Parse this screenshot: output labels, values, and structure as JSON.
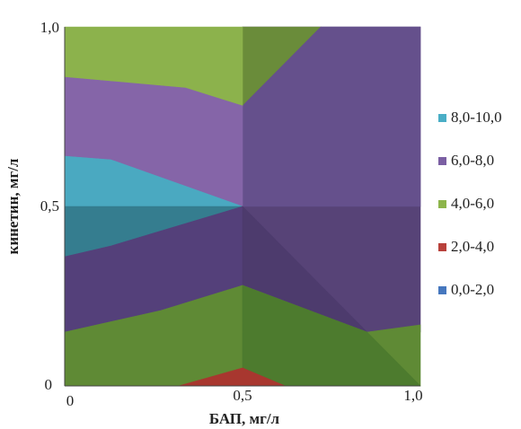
{
  "chart_data": {
    "type": "contour",
    "xlabel": "БАП, мг/л",
    "ylabel": "кинетин, мг/л",
    "x_ticks": [
      "0",
      "0,5",
      "1,0"
    ],
    "y_ticks": [
      "0",
      "0,5",
      "1,0"
    ],
    "xlim": [
      0,
      1
    ],
    "ylim": [
      0,
      1
    ],
    "legend_position": "right",
    "legend": [
      {
        "label": "8,0-10,0",
        "color": "#4aaec6"
      },
      {
        "label": "6,0-8,0",
        "color": "#7b5fa3"
      },
      {
        "label": "4,0-6,0",
        "color": "#8db54b"
      },
      {
        "label": "2,0-4,0",
        "color": "#b8413b"
      },
      {
        "label": "0,0-2,0",
        "color": "#4677be"
      }
    ],
    "grid": {
      "x": [
        0,
        0.5,
        1
      ],
      "y": [
        0,
        0.5,
        1
      ],
      "z": [
        [
          4.5,
          3.0,
          5.0
        ],
        [
          8.3,
          6.5,
          6.2
        ],
        [
          4.6,
          5.8,
          6.5
        ]
      ]
    },
    "regions": [
      {
        "band": "6,0-8,0",
        "color": "#5e4a82",
        "points": [
          [
            0.5,
            1
          ],
          [
            1,
            1
          ],
          [
            1,
            0.5
          ],
          [
            0.5,
            0.5
          ]
        ]
      },
      {
        "band": "6,0-8,0",
        "color": "#574377",
        "points": [
          [
            0.5,
            0.5
          ],
          [
            1,
            0.5
          ],
          [
            1,
            0.15
          ],
          [
            0.85,
            0.15
          ],
          [
            0.5,
            0.5
          ]
        ]
      },
      {
        "band": "4,0-6,0",
        "color": "#6a8c3a",
        "points": [
          [
            0.5,
            1
          ],
          [
            0.72,
            1
          ],
          [
            0.5,
            0.78
          ]
        ]
      },
      {
        "band": "6,0-8,0",
        "color": "#65508c",
        "points": [
          [
            0.5,
            0.78
          ],
          [
            0.72,
            1
          ],
          [
            1,
            1
          ],
          [
            1,
            0.5
          ],
          [
            0.5,
            0.5
          ]
        ]
      },
      {
        "band": "4,0-6,0",
        "color": "#8cb24c",
        "points": [
          [
            0,
            1
          ],
          [
            0.5,
            1
          ],
          [
            0.5,
            0.78
          ],
          [
            0.34,
            0.83
          ],
          [
            0,
            0.86
          ]
        ]
      },
      {
        "band": "6,0-8,0",
        "color": "#8565a8",
        "points": [
          [
            0,
            0.86
          ],
          [
            0.34,
            0.83
          ],
          [
            0.5,
            0.78
          ],
          [
            0.5,
            0.5
          ],
          [
            0.13,
            0.63
          ],
          [
            0,
            0.64
          ]
        ]
      },
      {
        "band": "8,0-10,0",
        "color": "#4aa9c1",
        "points": [
          [
            0,
            0.64
          ],
          [
            0.13,
            0.63
          ],
          [
            0.5,
            0.5
          ],
          [
            0,
            0.5
          ]
        ]
      },
      {
        "band": "8,0-10,0",
        "color": "#357d8f",
        "points": [
          [
            0,
            0.5
          ],
          [
            0.5,
            0.5
          ],
          [
            0.13,
            0.39
          ],
          [
            0,
            0.36
          ]
        ]
      },
      {
        "band": "6,0-8,0",
        "color": "#54407a",
        "points": [
          [
            0,
            0.36
          ],
          [
            0.13,
            0.39
          ],
          [
            0.5,
            0.5
          ],
          [
            0.5,
            0.28
          ],
          [
            0.27,
            0.21
          ],
          [
            0,
            0.15
          ]
        ]
      },
      {
        "band": "6,0-8,0",
        "color": "#4d3b6d",
        "points": [
          [
            0.5,
            0.5
          ],
          [
            0.85,
            0.15
          ],
          [
            0.5,
            0.28
          ]
        ]
      },
      {
        "band": "4,0-6,0",
        "color": "#5f8a35",
        "points": [
          [
            0,
            0.15
          ],
          [
            0.27,
            0.21
          ],
          [
            0.5,
            0.28
          ],
          [
            0.85,
            0.15
          ],
          [
            1,
            0.17
          ],
          [
            1,
            0
          ],
          [
            0.62,
            0
          ],
          [
            0.5,
            0.05
          ],
          [
            0.32,
            0
          ],
          [
            0,
            0
          ]
        ]
      },
      {
        "band": "4,0-6,0",
        "color": "#4d7b2e",
        "points": [
          [
            0.5,
            0.28
          ],
          [
            0.85,
            0.15
          ],
          [
            1,
            0
          ],
          [
            0.62,
            0
          ],
          [
            0.5,
            0.05
          ]
        ]
      },
      {
        "band": "2,0-4,0",
        "color": "#a8372f",
        "points": [
          [
            0.32,
            0
          ],
          [
            0.5,
            0.05
          ],
          [
            0.62,
            0
          ]
        ]
      }
    ]
  }
}
